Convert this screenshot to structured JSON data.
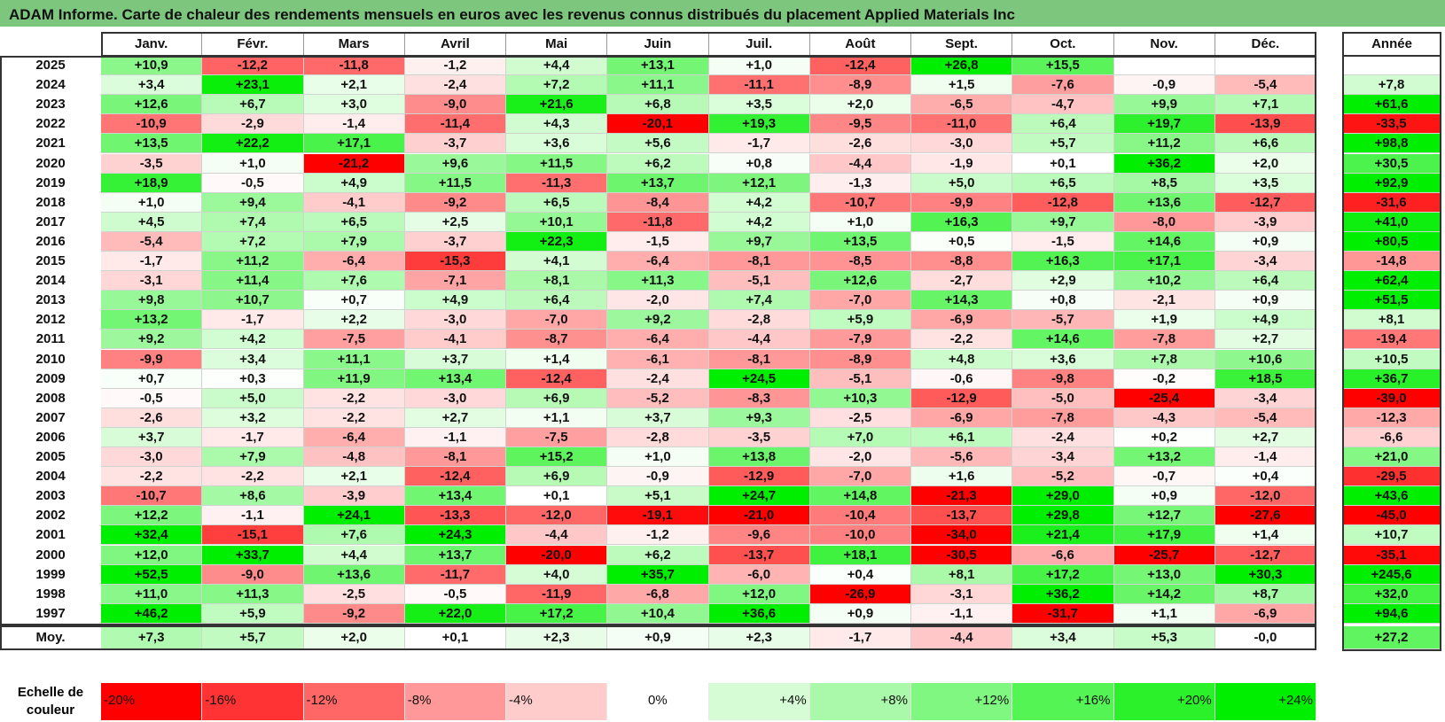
{
  "title": "ADAM Informe. Carte de chaleur des rendements mensuels en euros avec les revenus connus distribués du placement Applied Materials Inc",
  "chart_data": {
    "type": "heatmap",
    "title": "ADAM Informe. Carte de chaleur des rendements mensuels en euros avec les revenus connus distribués du placement Applied Materials Inc",
    "columns": [
      "Janv.",
      "Févr.",
      "Mars",
      "Avril",
      "Mai",
      "Juin",
      "Juil.",
      "Août",
      "Sept.",
      "Oct.",
      "Nov.",
      "Déc."
    ],
    "year_column_label": "Année",
    "average_row_label": "Moy.",
    "rows": [
      {
        "label": "2025",
        "values": [
          "+10,9",
          "-12,2",
          "-11,8",
          "-1,2",
          "+4,4",
          "+13,1",
          "+1,0",
          "-12,4",
          "+26,8",
          "+15,5",
          "",
          ""
        ],
        "year": ""
      },
      {
        "label": "2024",
        "values": [
          "+3,4",
          "+23,1",
          "+2,1",
          "-2,4",
          "+7,2",
          "+11,1",
          "-11,1",
          "-8,9",
          "+1,5",
          "-7,6",
          "-0,9",
          "-5,4"
        ],
        "year": "+7,8"
      },
      {
        "label": "2023",
        "values": [
          "+12,6",
          "+6,7",
          "+3,0",
          "-9,0",
          "+21,6",
          "+6,8",
          "+3,5",
          "+2,0",
          "-6,5",
          "-4,7",
          "+9,9",
          "+7,1"
        ],
        "year": "+61,6"
      },
      {
        "label": "2022",
        "values": [
          "-10,9",
          "-2,9",
          "-1,4",
          "-11,4",
          "+4,3",
          "-20,1",
          "+19,3",
          "-9,5",
          "-11,0",
          "+6,4",
          "+19,7",
          "-13,9"
        ],
        "year": "-33,5"
      },
      {
        "label": "2021",
        "values": [
          "+13,5",
          "+22,2",
          "+17,1",
          "-3,7",
          "+3,6",
          "+5,6",
          "-1,7",
          "-2,6",
          "-3,0",
          "+5,7",
          "+11,2",
          "+6,6"
        ],
        "year": "+98,8"
      },
      {
        "label": "2020",
        "values": [
          "-3,5",
          "+1,0",
          "-21,2",
          "+9,6",
          "+11,5",
          "+6,2",
          "+0,8",
          "-4,4",
          "-1,9",
          "+0,1",
          "+36,2",
          "+2,0"
        ],
        "year": "+30,5"
      },
      {
        "label": "2019",
        "values": [
          "+18,9",
          "-0,5",
          "+4,9",
          "+11,5",
          "-11,3",
          "+13,7",
          "+12,1",
          "-1,3",
          "+5,0",
          "+6,5",
          "+8,5",
          "+3,5"
        ],
        "year": "+92,9"
      },
      {
        "label": "2018",
        "values": [
          "+1,0",
          "+9,4",
          "-4,1",
          "-9,2",
          "+6,5",
          "-8,4",
          "+4,2",
          "-10,7",
          "-9,9",
          "-12,8",
          "+13,6",
          "-12,7"
        ],
        "year": "-31,6"
      },
      {
        "label": "2017",
        "values": [
          "+4,5",
          "+7,4",
          "+6,5",
          "+2,5",
          "+10,1",
          "-11,8",
          "+4,2",
          "+1,0",
          "+16,3",
          "+9,7",
          "-8,0",
          "-3,9"
        ],
        "year": "+41,0"
      },
      {
        "label": "2016",
        "values": [
          "-5,4",
          "+7,2",
          "+7,9",
          "-3,7",
          "+22,3",
          "-1,5",
          "+9,7",
          "+13,5",
          "+0,5",
          "-1,5",
          "+14,6",
          "+0,9"
        ],
        "year": "+80,5"
      },
      {
        "label": "2015",
        "values": [
          "-1,7",
          "+11,2",
          "-6,4",
          "-15,3",
          "+4,1",
          "-6,4",
          "-8,1",
          "-8,5",
          "-8,8",
          "+16,3",
          "+17,1",
          "-3,4"
        ],
        "year": "-14,8"
      },
      {
        "label": "2014",
        "values": [
          "-3,1",
          "+11,4",
          "+7,6",
          "-7,1",
          "+8,1",
          "+11,3",
          "-5,1",
          "+12,6",
          "-2,7",
          "+2,9",
          "+10,2",
          "+6,4"
        ],
        "year": "+62,4"
      },
      {
        "label": "2013",
        "values": [
          "+9,8",
          "+10,7",
          "+0,7",
          "+4,9",
          "+6,4",
          "-2,0",
          "+7,4",
          "-7,0",
          "+14,3",
          "+0,8",
          "-2,1",
          "+0,9"
        ],
        "year": "+51,5"
      },
      {
        "label": "2012",
        "values": [
          "+13,2",
          "-1,7",
          "+2,2",
          "-3,0",
          "-7,0",
          "+9,2",
          "-2,8",
          "+5,9",
          "-6,9",
          "-5,7",
          "+1,9",
          "+4,9"
        ],
        "year": "+8,1"
      },
      {
        "label": "2011",
        "values": [
          "+9,2",
          "+4,2",
          "-7,5",
          "-4,1",
          "-8,7",
          "-6,4",
          "-4,4",
          "-7,9",
          "-2,2",
          "+14,6",
          "-7,8",
          "+2,7"
        ],
        "year": "-19,4"
      },
      {
        "label": "2010",
        "values": [
          "-9,9",
          "+3,4",
          "+11,1",
          "+3,7",
          "+1,4",
          "-6,1",
          "-8,1",
          "-8,9",
          "+4,8",
          "+3,6",
          "+7,8",
          "+10,6"
        ],
        "year": "+10,5"
      },
      {
        "label": "2009",
        "values": [
          "+0,7",
          "+0,3",
          "+11,9",
          "+13,4",
          "-12,4",
          "-2,4",
          "+24,5",
          "-5,1",
          "-0,6",
          "-9,8",
          "-0,2",
          "+18,5"
        ],
        "year": "+36,7"
      },
      {
        "label": "2008",
        "values": [
          "-0,5",
          "+5,0",
          "-2,2",
          "-3,0",
          "+6,9",
          "-5,2",
          "-8,3",
          "+10,3",
          "-12,9",
          "-5,0",
          "-25,4",
          "-3,4"
        ],
        "year": "-39,0"
      },
      {
        "label": "2007",
        "values": [
          "-2,6",
          "+3,2",
          "-2,2",
          "+2,7",
          "+1,1",
          "+3,7",
          "+9,3",
          "-2,5",
          "-6,9",
          "-7,8",
          "-4,3",
          "-5,4"
        ],
        "year": "-12,3"
      },
      {
        "label": "2006",
        "values": [
          "+3,7",
          "-1,7",
          "-6,4",
          "-1,1",
          "-7,5",
          "-2,8",
          "-3,5",
          "+7,0",
          "+6,1",
          "-2,4",
          "+0,2",
          "+2,7"
        ],
        "year": "-6,6"
      },
      {
        "label": "2005",
        "values": [
          "-3,0",
          "+7,9",
          "-4,8",
          "-8,1",
          "+15,2",
          "+1,0",
          "+13,8",
          "-2,0",
          "-5,6",
          "-3,4",
          "+13,2",
          "-1,4"
        ],
        "year": "+21,0"
      },
      {
        "label": "2004",
        "values": [
          "-2,2",
          "-2,2",
          "+2,1",
          "-12,4",
          "+6,9",
          "-0,9",
          "-12,9",
          "-7,0",
          "+1,6",
          "-5,2",
          "-0,7",
          "+0,4"
        ],
        "year": "-29,5"
      },
      {
        "label": "2003",
        "values": [
          "-10,7",
          "+8,6",
          "-3,9",
          "+13,4",
          "+0,1",
          "+5,1",
          "+24,7",
          "+14,8",
          "-21,3",
          "+29,0",
          "+0,9",
          "-12,0"
        ],
        "year": "+43,6"
      },
      {
        "label": "2002",
        "values": [
          "+12,2",
          "-1,1",
          "+24,1",
          "-13,3",
          "-12,0",
          "-19,1",
          "-21,0",
          "-10,4",
          "-13,7",
          "+29,8",
          "+12,7",
          "-27,6"
        ],
        "year": "-45,0"
      },
      {
        "label": "2001",
        "values": [
          "+32,4",
          "-15,1",
          "+7,6",
          "+24,3",
          "-4,4",
          "-1,2",
          "-9,6",
          "-10,0",
          "-34,0",
          "+21,4",
          "+17,9",
          "+1,4"
        ],
        "year": "+10,7"
      },
      {
        "label": "2000",
        "values": [
          "+12,0",
          "+33,7",
          "+4,4",
          "+13,7",
          "-20,0",
          "+6,2",
          "-13,7",
          "+18,1",
          "-30,5",
          "-6,6",
          "-25,7",
          "-12,7"
        ],
        "year": "-35,1"
      },
      {
        "label": "1999",
        "values": [
          "+52,5",
          "-9,0",
          "+13,6",
          "-11,7",
          "+4,0",
          "+35,7",
          "-6,0",
          "+0,4",
          "+8,1",
          "+17,2",
          "+13,0",
          "+30,3"
        ],
        "year": "+245,6"
      },
      {
        "label": "1998",
        "values": [
          "+11,0",
          "+11,3",
          "-2,5",
          "-0,5",
          "-11,9",
          "-6,8",
          "+12,0",
          "-26,9",
          "-3,1",
          "+36,2",
          "+14,2",
          "+8,7"
        ],
        "year": "+32,0"
      },
      {
        "label": "1997",
        "values": [
          "+46,2",
          "+5,9",
          "-9,2",
          "+22,0",
          "+17,2",
          "+10,4",
          "+36,6",
          "+0,9",
          "-1,1",
          "-31,7",
          "+1,1",
          "-6,9"
        ],
        "year": "+94,6"
      }
    ],
    "average": {
      "label": "Moy.",
      "values": [
        "+7,3",
        "+5,7",
        "+2,0",
        "+0,1",
        "+2,3",
        "+0,9",
        "+2,3",
        "-1,7",
        "-4,4",
        "+3,4",
        "+5,3",
        "-0,0"
      ],
      "year": "+27,2"
    },
    "legend": {
      "title": "Echelle de couleur",
      "values": [
        "-20%",
        "-16%",
        "-12%",
        "-8%",
        "-4%",
        "0%",
        "+4%",
        "+8%",
        "+12%",
        "+16%",
        "+20%",
        "+24%"
      ],
      "levels": [
        -20,
        -16,
        -12,
        -8,
        -4,
        0,
        4,
        8,
        12,
        16,
        20,
        24
      ]
    },
    "colors": {
      "negative_max": "#ff0000",
      "positive_max": "#00ee00",
      "neutral": "#ffffff",
      "title_bar": "#7dc67d",
      "grid": "#333333"
    }
  }
}
